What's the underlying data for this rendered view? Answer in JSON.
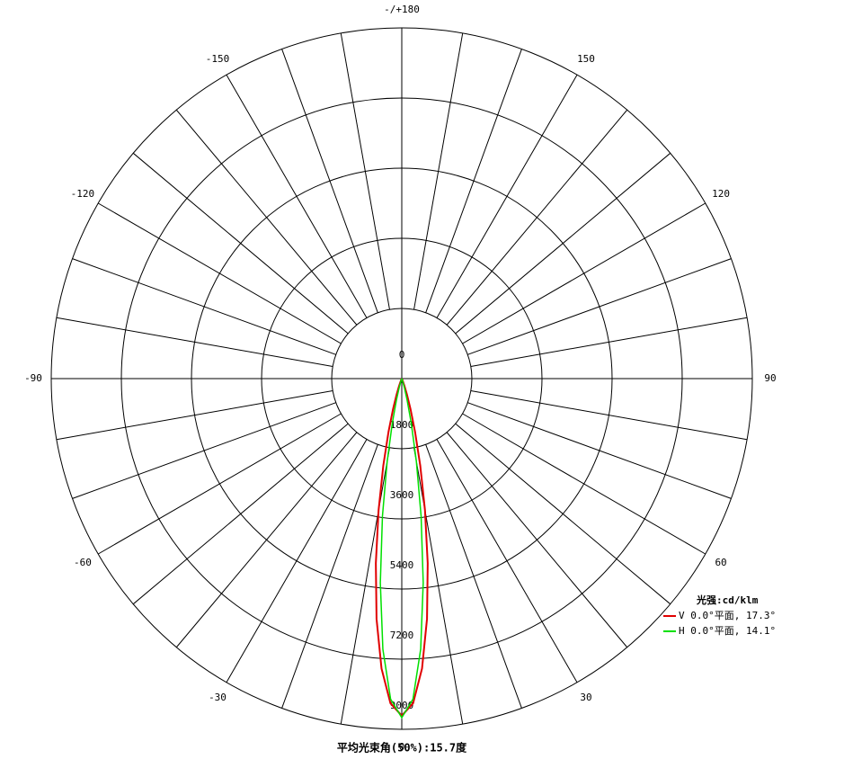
{
  "chart_data": {
    "type": "polar",
    "angles": [
      -30,
      -28,
      -26,
      -24,
      -22,
      -20,
      -18,
      -16,
      -14,
      -12,
      -10,
      -8,
      -6,
      -4,
      -2,
      0,
      2,
      4,
      6,
      8,
      10,
      12,
      14,
      16,
      18,
      20,
      22,
      24,
      26,
      28,
      30
    ],
    "series": [
      {
        "name": "V 0.0°平面, 17.3°",
        "color": "#e00000",
        "values": [
          2,
          6,
          17,
          42,
          98,
          213,
          431,
          810,
          1410,
          2281,
          3430,
          4786,
          6200,
          7457,
          8335,
          8650,
          8335,
          7457,
          6200,
          4786,
          3430,
          2281,
          1410,
          810,
          431,
          213,
          98,
          42,
          17,
          6,
          2
        ]
      },
      {
        "name": "H 0.0°平面, 14.1°",
        "color": "#00e000",
        "values": [
          0,
          0,
          1,
          3,
          10,
          33,
          95,
          245,
          567,
          1169,
          2159,
          3566,
          5267,
          6961,
          8228,
          8700,
          8228,
          6961,
          5267,
          3566,
          2159,
          1169,
          567,
          245,
          95,
          33,
          10,
          3,
          1,
          0,
          0
        ]
      }
    ],
    "rlim": [
      0,
      9000
    ],
    "rticks": [
      0,
      1800,
      3600,
      5400,
      7200,
      9000
    ],
    "angle_ticks": [
      0,
      30,
      60,
      90,
      120,
      150,
      {
        "value": 180,
        "label": "-/+180"
      },
      -150,
      -120,
      -90,
      -60,
      -30
    ],
    "legend_title": "光强:cd/klm",
    "annotation": "平均光束角(50%):15.7度"
  }
}
